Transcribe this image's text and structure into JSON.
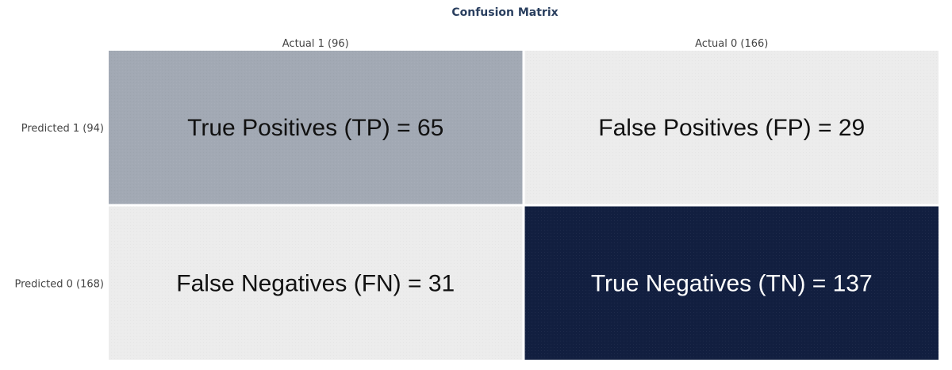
{
  "chart_data": {
    "type": "heatmap",
    "title": "Confusion Matrix",
    "columns": [
      "Actual 1 (96)",
      "Actual 0 (166)"
    ],
    "rows": [
      "Predicted 1 (94)",
      "Predicted 0 (168)"
    ],
    "values": [
      [
        65,
        29
      ],
      [
        31,
        137
      ]
    ],
    "cell_labels": [
      [
        "True Positives (TP) = 65",
        "False Positives (FP) = 29"
      ],
      [
        "False Negatives (FN) = 31",
        "True Negatives (TN) = 137"
      ]
    ],
    "cell_colors": [
      [
        "#a2a9b4",
        "#ececec"
      ],
      [
        "#ececec",
        "#121f40"
      ]
    ],
    "cell_text_colors": [
      [
        "#111111",
        "#111111"
      ],
      [
        "#111111",
        "#ffffff"
      ]
    ]
  }
}
